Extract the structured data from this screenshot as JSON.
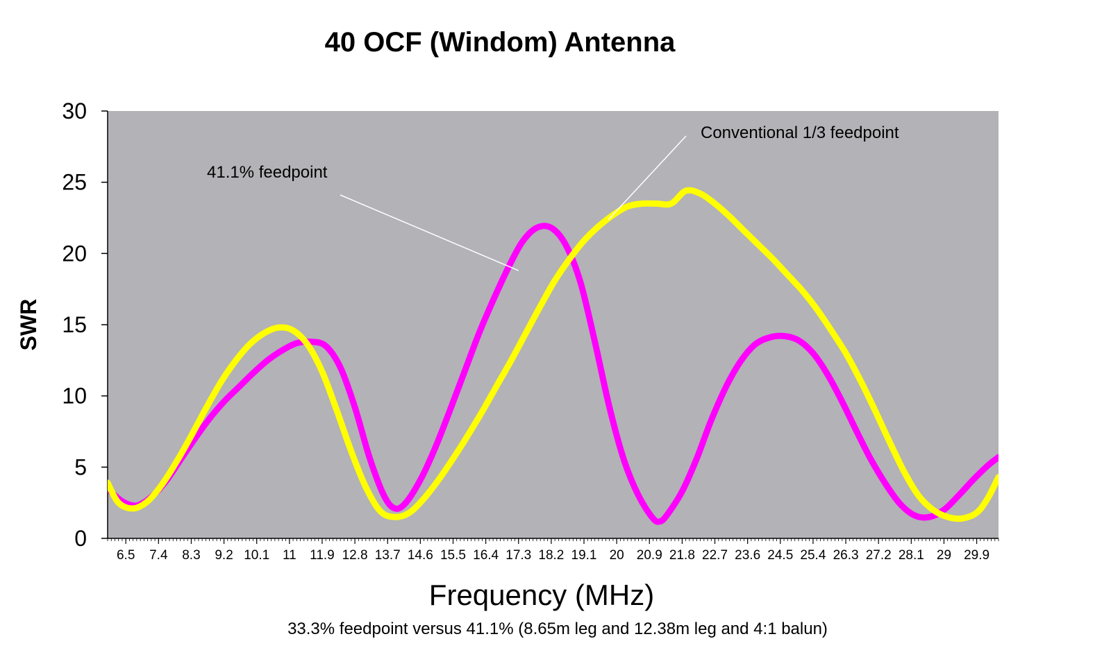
{
  "chart_data": {
    "type": "line",
    "title": "40 OCF (Windom) Antenna",
    "subtitle": "33.3% feedpoint versus 41.1% (8.65m leg and 12.38m leg and 4:1 balun)",
    "xlabel": "Frequency (MHz)",
    "ylabel": "SWR",
    "xlim": [
      6.0,
      30.5
    ],
    "ylim": [
      0,
      30
    ],
    "yticks": [
      0,
      5,
      10,
      15,
      20,
      25,
      30
    ],
    "xtick_labels": [
      "6.5",
      "7.4",
      "8.3",
      "9.2",
      "10.1",
      "11",
      "11.9",
      "12.8",
      "13.7",
      "14.6",
      "15.5",
      "16.4",
      "17.3",
      "18.2",
      "19.1",
      "20",
      "20.9",
      "21.8",
      "22.7",
      "23.6",
      "24.5",
      "25.4",
      "26.3",
      "27.2",
      "28.1",
      "29",
      "29.9"
    ],
    "grid": false,
    "plot_background": "#b3b2b6",
    "annotations": [
      {
        "text": "41.1% feedpoint",
        "points_to": [
          17.3,
          18.8
        ]
      },
      {
        "text": "Conventional 1/3 feedpoint",
        "points_to": [
          20.0,
          23.2
        ]
      }
    ],
    "series": [
      {
        "name": "41.1% feedpoint",
        "color": "#ff00ff",
        "x": [
          6.0,
          6.4,
          6.8,
          7.2,
          7.6,
          8.0,
          8.4,
          8.8,
          9.2,
          9.6,
          10.0,
          10.4,
          10.8,
          11.2,
          11.6,
          12.0,
          12.4,
          12.8,
          13.2,
          13.6,
          13.9,
          14.2,
          14.6,
          15.0,
          15.4,
          15.8,
          16.2,
          16.6,
          17.0,
          17.4,
          17.8,
          18.2,
          18.6,
          19.0,
          19.4,
          19.8,
          20.2,
          20.6,
          21.0,
          21.2,
          21.4,
          21.8,
          22.2,
          22.6,
          23.0,
          23.4,
          23.8,
          24.2,
          24.6,
          25.0,
          25.4,
          25.8,
          26.2,
          26.6,
          27.0,
          27.4,
          27.8,
          28.2,
          28.6,
          29.0,
          29.4,
          29.8,
          30.2,
          30.5
        ],
        "y": [
          3.5,
          2.6,
          2.3,
          2.9,
          4.0,
          5.5,
          7.0,
          8.4,
          9.6,
          10.6,
          11.6,
          12.5,
          13.2,
          13.7,
          13.8,
          13.5,
          12.0,
          9.2,
          5.7,
          3.0,
          2.1,
          2.5,
          4.1,
          6.3,
          8.9,
          11.6,
          14.3,
          16.7,
          18.9,
          20.8,
          21.8,
          21.8,
          20.6,
          18.0,
          13.8,
          9.2,
          5.5,
          3.0,
          1.4,
          1.2,
          1.7,
          3.3,
          5.6,
          8.3,
          10.6,
          12.4,
          13.6,
          14.1,
          14.2,
          13.9,
          13.0,
          11.5,
          9.6,
          7.5,
          5.5,
          3.8,
          2.4,
          1.6,
          1.5,
          2.0,
          3.0,
          4.1,
          5.1,
          5.7
        ]
      },
      {
        "name": "Conventional 1/3 feedpoint",
        "color": "#ffff00",
        "x": [
          6.0,
          6.3,
          6.7,
          7.1,
          7.5,
          7.9,
          8.3,
          8.7,
          9.1,
          9.5,
          9.9,
          10.3,
          10.7,
          11.1,
          11.5,
          11.9,
          12.3,
          12.7,
          13.1,
          13.5,
          13.9,
          14.3,
          14.7,
          15.1,
          15.5,
          15.9,
          16.3,
          16.7,
          17.1,
          17.5,
          17.9,
          18.3,
          18.7,
          19.1,
          19.5,
          19.9,
          20.3,
          20.7,
          21.1,
          21.5,
          21.9,
          22.3,
          22.7,
          23.1,
          23.5,
          23.9,
          24.3,
          24.7,
          25.1,
          25.5,
          25.9,
          26.3,
          26.7,
          27.1,
          27.5,
          27.9,
          28.3,
          28.7,
          29.1,
          29.5,
          29.9,
          30.2,
          30.5
        ],
        "y": [
          3.9,
          2.5,
          2.1,
          2.6,
          3.8,
          5.4,
          7.2,
          9.1,
          10.9,
          12.4,
          13.6,
          14.4,
          14.8,
          14.6,
          13.6,
          11.7,
          9.0,
          6.1,
          3.6,
          1.9,
          1.5,
          1.8,
          2.8,
          4.1,
          5.6,
          7.2,
          8.9,
          10.7,
          12.5,
          14.4,
          16.3,
          18.1,
          19.6,
          20.9,
          21.9,
          22.7,
          23.3,
          23.5,
          23.5,
          23.5,
          24.4,
          24.2,
          23.5,
          22.6,
          21.6,
          20.6,
          19.6,
          18.5,
          17.4,
          16.1,
          14.6,
          13.0,
          11.1,
          9.0,
          6.8,
          4.7,
          3.0,
          2.0,
          1.5,
          1.4,
          1.8,
          2.8,
          4.3
        ]
      }
    ]
  }
}
